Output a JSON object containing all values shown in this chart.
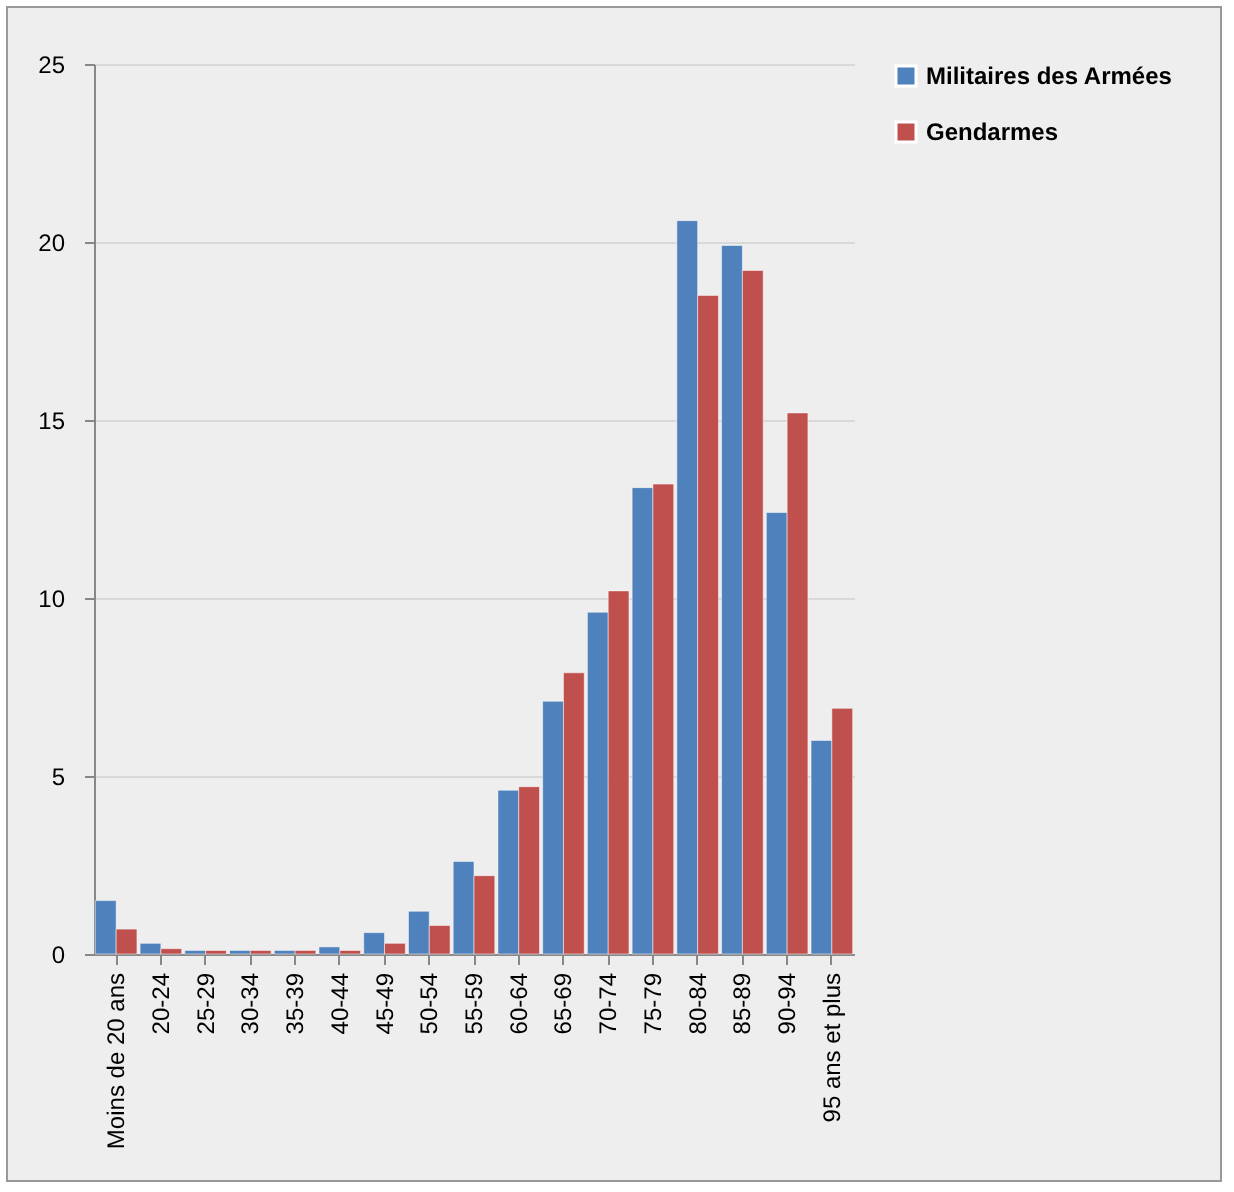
{
  "chart_data": {
    "type": "bar",
    "categories": [
      "Moins de 20 ans",
      "20-24",
      "25-29",
      "30-34",
      "35-39",
      "40-44",
      "45-49",
      "50-54",
      "55-59",
      "60-64",
      "65-69",
      "70-74",
      "75-79",
      "80-84",
      "85-89",
      "90-94",
      "95 ans et plus"
    ],
    "series": [
      {
        "name": "Militaires des Armées",
        "color": "#4f81bd",
        "values": [
          1.5,
          0.3,
          0.1,
          0.1,
          0.1,
          0.2,
          0.6,
          1.2,
          2.6,
          4.6,
          7.1,
          9.6,
          13.1,
          20.6,
          19.9,
          12.4,
          6.0
        ]
      },
      {
        "name": "Gendarmes",
        "color": "#c0504d",
        "values": [
          0.7,
          0.15,
          0.1,
          0.1,
          0.1,
          0.1,
          0.3,
          0.8,
          2.2,
          4.7,
          7.9,
          10.2,
          13.2,
          18.5,
          19.2,
          15.2,
          6.9
        ]
      }
    ],
    "ylim": [
      0,
      25
    ],
    "yticks": [
      0,
      5,
      10,
      15,
      20,
      25
    ],
    "grid": "y",
    "legend": "right"
  }
}
